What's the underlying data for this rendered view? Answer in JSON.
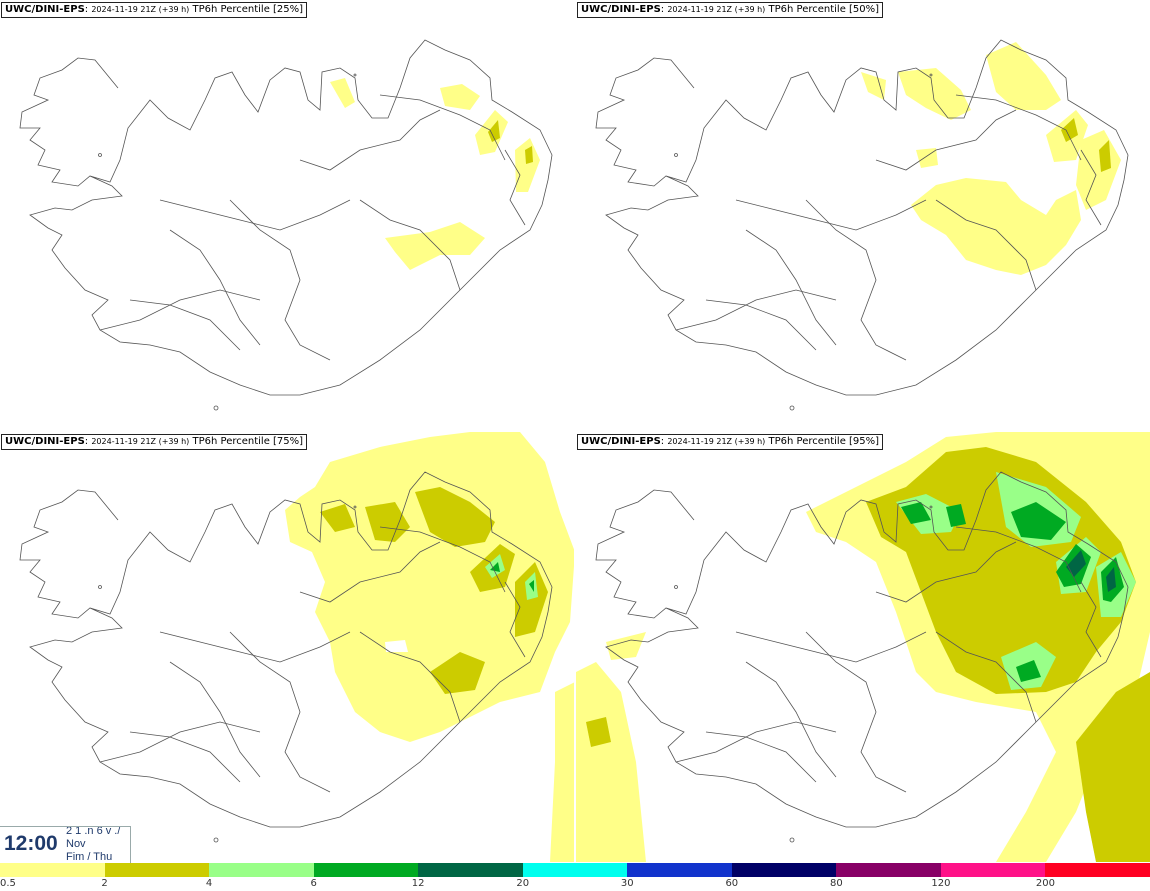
{
  "panels": [
    {
      "source": "UWC/DINI-EPS",
      "date": "2024-11-19 21Z (+39 h)",
      "product": "TP6h Percentile [25%]"
    },
    {
      "source": "UWC/DINI-EPS",
      "date": "2024-11-19 21Z (+39 h)",
      "product": "TP6h Percentile [50%]"
    },
    {
      "source": "UWC/DINI-EPS",
      "date": "2024-11-19 21Z (+39 h)",
      "product": "TP6h Percentile [75%]"
    },
    {
      "source": "UWC/DINI-EPS",
      "date": "2024-11-19 21Z (+39 h)",
      "product": "TP6h Percentile [95%]"
    }
  ],
  "time": {
    "clock": "12:00",
    "weekday": "2 1 .n 6 v ./",
    "month": "Nov",
    "day": "Fim / Thu"
  },
  "legend": {
    "ticks": [
      "0.5",
      "2",
      "4",
      "6",
      "12",
      "20",
      "30",
      "60",
      "80",
      "120",
      "200"
    ],
    "colors": [
      "#ffff88",
      "#cccc00",
      "#99ff88",
      "#00aa22",
      "#006644",
      "#00ffee",
      "#1133cc",
      "#000066",
      "#880066",
      "#ff1188",
      "#ff0022"
    ]
  },
  "map_colors": {
    "level1": "#ffff88",
    "level2": "#cccc00",
    "level3": "#99ff88",
    "level4": "#00aa22",
    "level5": "#006644",
    "coast": "#555555"
  }
}
